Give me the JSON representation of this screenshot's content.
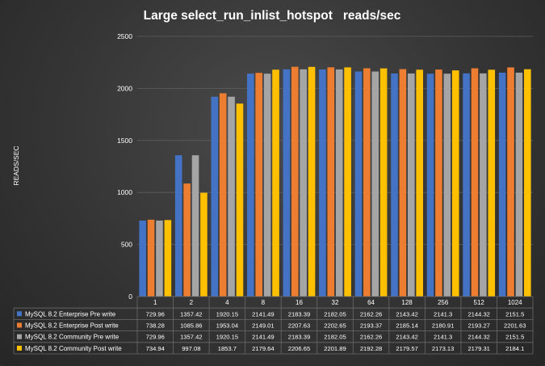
{
  "chart_data": {
    "type": "bar",
    "title": "Large select_run_inlist_hotspot   reads/sec",
    "ylabel": "READS/SEC",
    "xlabel": "",
    "ylim": [
      0,
      2500
    ],
    "yticks": [
      0,
      500,
      1000,
      1500,
      2000,
      2500
    ],
    "grid": true,
    "legend": "data table below the chart",
    "categories": [
      "1",
      "2",
      "4",
      "8",
      "16",
      "32",
      "64",
      "128",
      "256",
      "512",
      "1024"
    ],
    "series": [
      {
        "name": "MySQL 8.2 Enterprise Pre write",
        "color": "#4472C4",
        "values": [
          729.96,
          1357.42,
          1920.15,
          2141.49,
          2183.39,
          2182.05,
          2162.26,
          2143.42,
          2141.3,
          2144.32,
          2151.5
        ],
        "labels": [
          "729.96",
          "1357.42",
          "1920.15",
          "2141.49",
          "2183.39",
          "2182.05",
          "2162.26",
          "2143.42",
          "2141.3",
          "2144.32",
          "2151.5"
        ]
      },
      {
        "name": "MySQL 8.2 Enterprise Post write",
        "color": "#ED7D31",
        "values": [
          738.28,
          1085.86,
          1953.04,
          2149.01,
          2207.63,
          2202.65,
          2193.37,
          2185.14,
          2180.91,
          2193.27,
          2201.63
        ],
        "labels": [
          "738.28",
          "1085.86",
          "1953.04",
          "2149.01",
          "2207.63",
          "2202.65",
          "2193.37",
          "2185.14",
          "2180.91",
          "2193.27",
          "2201.63"
        ]
      },
      {
        "name": "MySQL 8.2 Community Pre write",
        "color": "#A5A5A5",
        "values": [
          729.96,
          1357.42,
          1920.15,
          2141.49,
          2183.39,
          2182.05,
          2162.26,
          2143.42,
          2141.3,
          2144.32,
          2151.5
        ],
        "labels": [
          "729.96",
          "1357.42",
          "1920.15",
          "2141.49",
          "2183.39",
          "2182.05",
          "2162.26",
          "2143.42",
          "2141.3",
          "2144.32",
          "2151.5"
        ]
      },
      {
        "name": "MySQL 8.2 Community Post write",
        "color": "#FFC000",
        "values": [
          734.94,
          997.08,
          1853.7,
          2179.64,
          2206.65,
          2201.89,
          2192.28,
          2179.57,
          2173.13,
          2179.31,
          2184.1
        ],
        "labels": [
          "734.94",
          "997.08",
          "1853.7",
          "2179.64",
          "2206.65",
          "2201.89",
          "2192.28",
          "2179.57",
          "2173.13",
          "2179.31",
          "2184.1"
        ]
      }
    ]
  }
}
